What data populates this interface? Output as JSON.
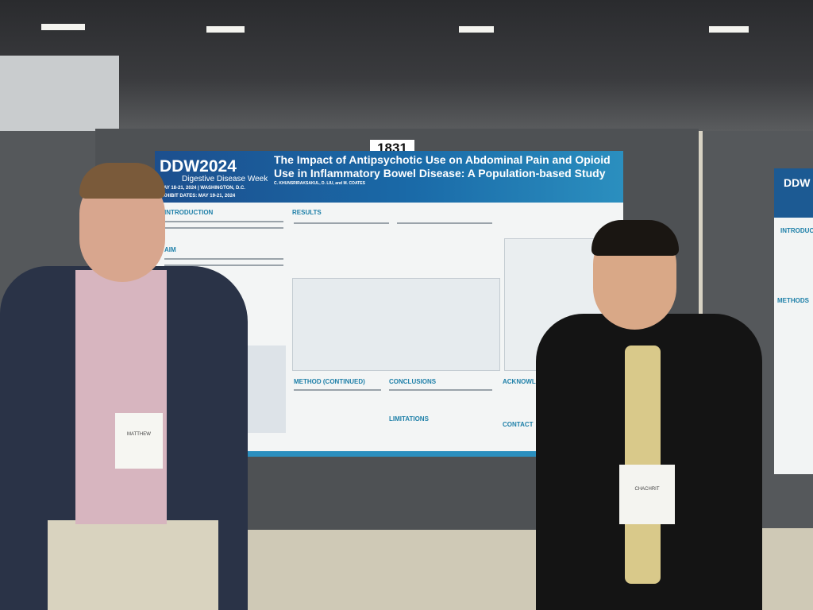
{
  "booth_number": "1831",
  "poster": {
    "logo": "DDW2024",
    "logo_subtitle": "Digestive Disease Week",
    "dates": "MAY 18-21, 2024 | WASHINGTON, D.C.",
    "exhibit_dates": "EXHIBIT DATES: MAY 19-21, 2024",
    "title": "The Impact of Antipsychotic Use on Abdominal Pain and Opioid Use in Inflammatory Bowel Disease: A Population-based Study",
    "authors": "C. KHUNSRIRAKSAKUL, D. LIU, and M. COATES",
    "sections": [
      "INTRODUCTION",
      "AIM",
      "RESULTS",
      "METHOD (CONTINUED)",
      "CONCLUSIONS",
      "LIMITATIONS",
      "ACKNOWLEDGEMENTS",
      "CONTACT"
    ]
  },
  "side_poster": {
    "logo": "DDW",
    "sections": [
      "INTRODUCTION",
      "METHODS"
    ]
  },
  "badges": [
    "MATTHEW",
    "CHACHRIT"
  ]
}
